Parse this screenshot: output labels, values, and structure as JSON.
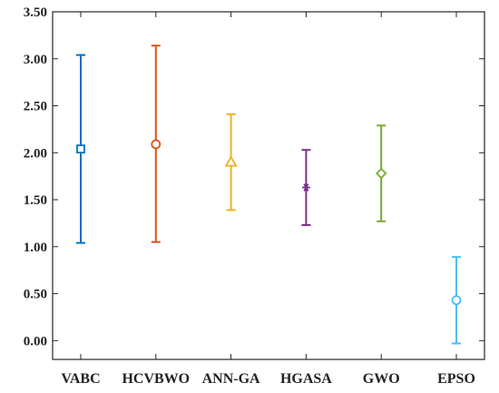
{
  "chart_data": {
    "type": "errorbar",
    "title": "",
    "xlabel": "",
    "ylabel": "",
    "categories": [
      "VABC",
      "HCVBWO",
      "ANN-GA",
      "HGASA",
      "GWO",
      "EPSO"
    ],
    "ylim": [
      -0.2,
      3.5
    ],
    "yticks": [
      0.0,
      0.5,
      1.0,
      1.5,
      2.0,
      2.5,
      3.0,
      3.5
    ],
    "ytick_labels": [
      "0.00",
      "0.50",
      "1.00",
      "1.50",
      "2.00",
      "2.50",
      "3.00",
      "3.50"
    ],
    "grid": false,
    "legend": "none",
    "series": [
      {
        "category": "VABC",
        "mean": 2.04,
        "lower": 1.04,
        "upper": 3.04,
        "marker": "square",
        "color": "#0072BD"
      },
      {
        "category": "HCVBWO",
        "mean": 2.09,
        "lower": 1.05,
        "upper": 3.14,
        "marker": "circle",
        "color": "#D95319"
      },
      {
        "category": "ANN-GA",
        "mean": 1.9,
        "lower": 1.39,
        "upper": 2.41,
        "marker": "triangle",
        "color": "#EDB120"
      },
      {
        "category": "HGASA",
        "mean": 1.63,
        "lower": 1.23,
        "upper": 2.03,
        "marker": "star",
        "color": "#7E2F8E"
      },
      {
        "category": "GWO",
        "mean": 1.78,
        "lower": 1.27,
        "upper": 2.29,
        "marker": "diamond",
        "color": "#77AC30"
      },
      {
        "category": "EPSO",
        "mean": 0.43,
        "lower": -0.03,
        "upper": 0.89,
        "marker": "circle",
        "color": "#4DBEEE"
      }
    ]
  }
}
